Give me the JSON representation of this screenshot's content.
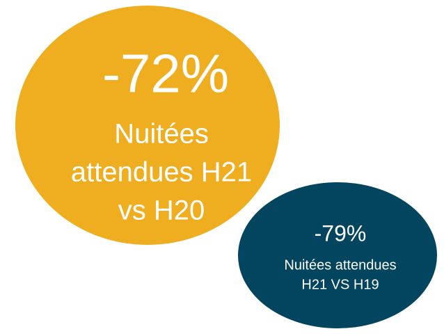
{
  "bubbles": [
    {
      "figure": "-72%",
      "lines": [
        "Nuitées",
        "attendues H21",
        "vs H20"
      ]
    },
    {
      "figure": "-79%",
      "lines": [
        "Nuitées attendues",
        "H21 VS H19"
      ]
    }
  ]
}
